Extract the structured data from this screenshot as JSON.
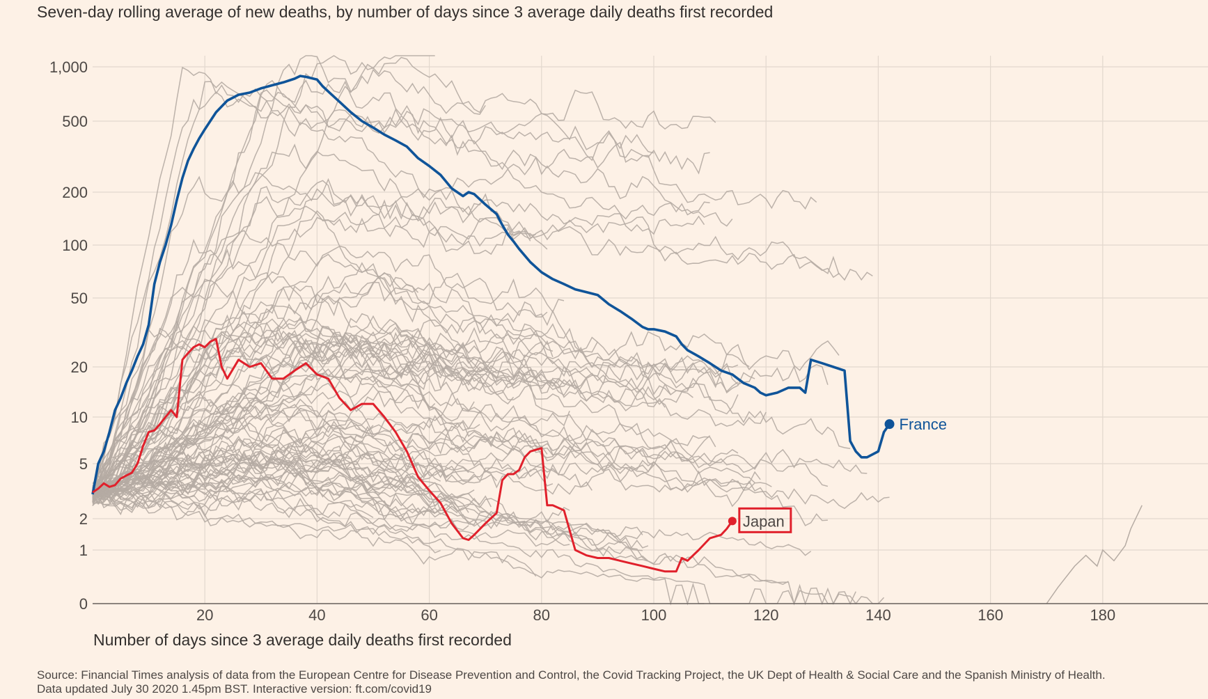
{
  "colors": {
    "background": "#fdf1e6",
    "grid": "#e3d8ce",
    "other_countries": "#b5aba3",
    "france": "#0f5499",
    "japan": "#e0202b"
  },
  "header": {
    "title": "Seven-day rolling average of new deaths, by number of days since 3 average daily deaths first recorded"
  },
  "footer": {
    "line1": "Source: Financial Times analysis of data from the European Centre for Disease Prevention and Control, the Covid Tracking Project, the UK Dept of Health & Social Care and the Spanish Ministry of Health.",
    "line2": "Data updated July 30 2020 1.45pm BST. Interactive version: ft.com/covid19"
  },
  "chart_data": {
    "type": "line",
    "title": "Seven-day rolling average of new deaths, by number of days since 3 average daily deaths first recorded",
    "xlabel": "Number of days since 3 average daily deaths first recorded",
    "ylabel": "",
    "y_scale": "log",
    "xlim": [
      0,
      198
    ],
    "ylim": [
      0,
      1300
    ],
    "x_ticks": [
      20,
      40,
      60,
      80,
      100,
      120,
      140,
      160,
      180
    ],
    "x_tick_labels": [
      "20",
      "40",
      "60",
      "80",
      "100",
      "120",
      "140",
      "160",
      "180"
    ],
    "y_ticks": [
      0,
      1,
      2,
      5,
      10,
      20,
      50,
      100,
      200,
      500,
      1000
    ],
    "y_tick_labels": [
      "0",
      "1",
      "2",
      "5",
      "10",
      "20",
      "50",
      "100",
      "200",
      "500",
      "1,000"
    ],
    "grid": true,
    "legend": "inline labels at line ends",
    "series": [
      {
        "name": "France",
        "highlight": true,
        "x": [
          0,
          1,
          2,
          3,
          4,
          5,
          6,
          7,
          8,
          9,
          10,
          11,
          12,
          13,
          14,
          15,
          16,
          17,
          18,
          19,
          20,
          22,
          24,
          26,
          28,
          30,
          32,
          34,
          36,
          37,
          38,
          40,
          41,
          42,
          44,
          46,
          48,
          50,
          52,
          54,
          56,
          58,
          60,
          62,
          64,
          66,
          67,
          68,
          70,
          72,
          73,
          74,
          75,
          76,
          78,
          80,
          82,
          84,
          86,
          88,
          90,
          92,
          94,
          96,
          98,
          99,
          100,
          102,
          104,
          105,
          106,
          108,
          110,
          111,
          112,
          114,
          116,
          118,
          119,
          120,
          122,
          124,
          126,
          127,
          128,
          130,
          132,
          134,
          135,
          136,
          137,
          138,
          140,
          141,
          142
        ],
        "values": [
          3,
          5,
          6,
          8,
          11,
          13,
          16,
          19,
          23,
          27,
          35,
          60,
          80,
          100,
          130,
          180,
          240,
          300,
          350,
          400,
          450,
          560,
          650,
          700,
          720,
          760,
          790,
          820,
          860,
          890,
          880,
          850,
          780,
          730,
          640,
          560,
          500,
          460,
          420,
          390,
          360,
          310,
          280,
          250,
          210,
          190,
          200,
          195,
          170,
          150,
          130,
          115,
          105,
          95,
          80,
          70,
          64,
          60,
          56,
          54,
          52,
          46,
          42,
          38,
          34,
          33,
          33,
          32,
          30,
          27,
          25,
          23,
          21,
          20,
          19,
          18,
          16,
          15,
          14,
          13.5,
          14,
          15,
          15,
          14,
          22,
          21,
          20,
          19,
          7,
          6,
          5.5,
          5.5,
          6,
          8,
          9
        ]
      },
      {
        "name": "Japan",
        "highlight": true,
        "x": [
          0,
          1,
          2,
          3,
          4,
          5,
          6,
          7,
          8,
          9,
          10,
          11,
          12,
          13,
          14,
          15,
          16,
          17,
          18,
          19,
          20,
          21,
          22,
          23,
          24,
          26,
          28,
          30,
          32,
          34,
          36,
          38,
          40,
          42,
          44,
          46,
          48,
          50,
          52,
          54,
          56,
          58,
          60,
          62,
          64,
          66,
          67,
          68,
          70,
          72,
          73,
          74,
          75,
          76,
          77,
          78,
          80,
          81,
          82,
          84,
          86,
          88,
          90,
          92,
          94,
          96,
          98,
          100,
          102,
          104,
          105,
          106,
          108,
          110,
          112,
          113,
          114
        ],
        "values": [
          3.1,
          3.3,
          3.6,
          3.4,
          3.5,
          3.9,
          4.1,
          4.3,
          5,
          6.5,
          8,
          8.2,
          9,
          10,
          11,
          10,
          22,
          24,
          26,
          27,
          26,
          28,
          29,
          20,
          17,
          22,
          20,
          21,
          17,
          17,
          19,
          21,
          18,
          17,
          13,
          11,
          12,
          12,
          10,
          8,
          6,
          4,
          3.2,
          2.6,
          1.8,
          1.3,
          1.25,
          1.4,
          1.8,
          2.2,
          3.8,
          4.2,
          4.2,
          4.5,
          5.5,
          6,
          6.3,
          2.5,
          2.5,
          2.3,
          1.0,
          0.9,
          0.85,
          0.85,
          0.8,
          0.75,
          0.7,
          0.65,
          0.6,
          0.6,
          0.85,
          0.8,
          1.0,
          1.3,
          1.4,
          1.6,
          1.9
        ]
      }
    ],
    "annotations": [
      "France",
      "Japan"
    ]
  },
  "annotations": {
    "france_label": "France",
    "japan_label": "Japan"
  }
}
